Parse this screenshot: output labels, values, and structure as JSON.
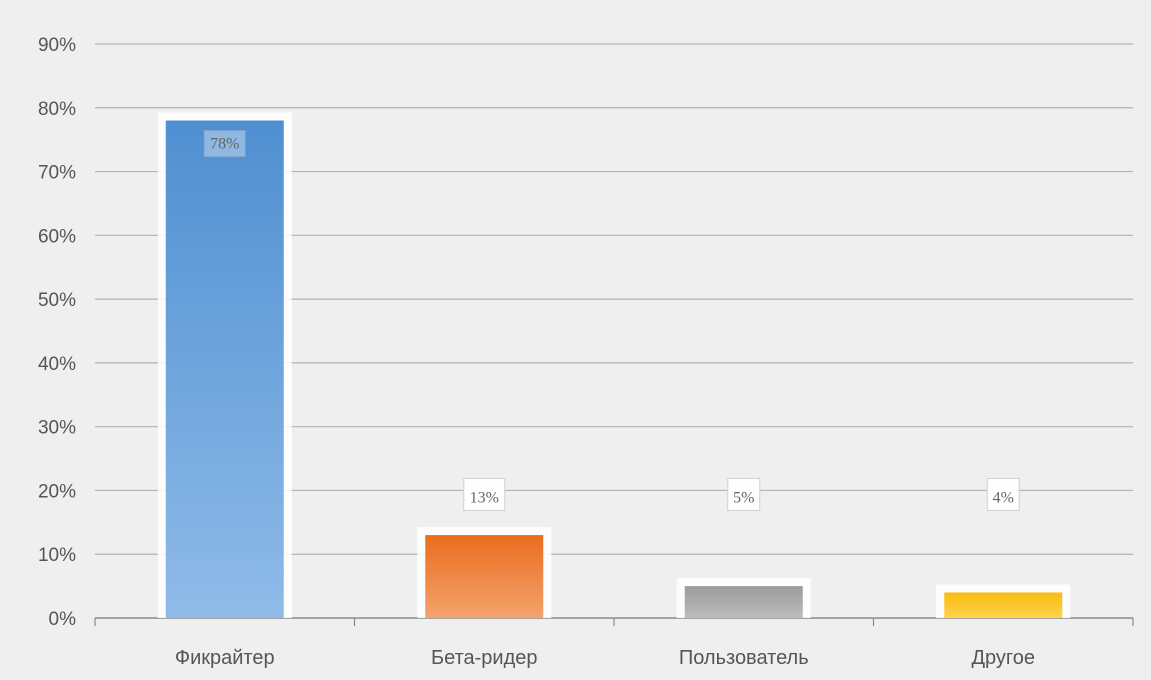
{
  "chart_data": {
    "type": "bar",
    "categories": [
      "Фикрайтер",
      "Бета-ридер",
      "Пользователь",
      "Другое"
    ],
    "values": [
      78,
      13,
      5,
      4
    ],
    "data_labels": [
      "78%",
      "13%",
      "5%",
      "4%"
    ],
    "ylim": [
      0,
      90
    ],
    "yticks": [
      "0%",
      "10%",
      "20%",
      "30%",
      "40%",
      "50%",
      "60%",
      "70%",
      "80%",
      "90%"
    ],
    "grid": true,
    "legend": "none",
    "colors": {
      "Фикрайтер": "#5b9bd5",
      "Бета-ридер": "#ed7d31",
      "Пользователь": "#a5a5a5",
      "Другое": "#ffc000"
    }
  }
}
